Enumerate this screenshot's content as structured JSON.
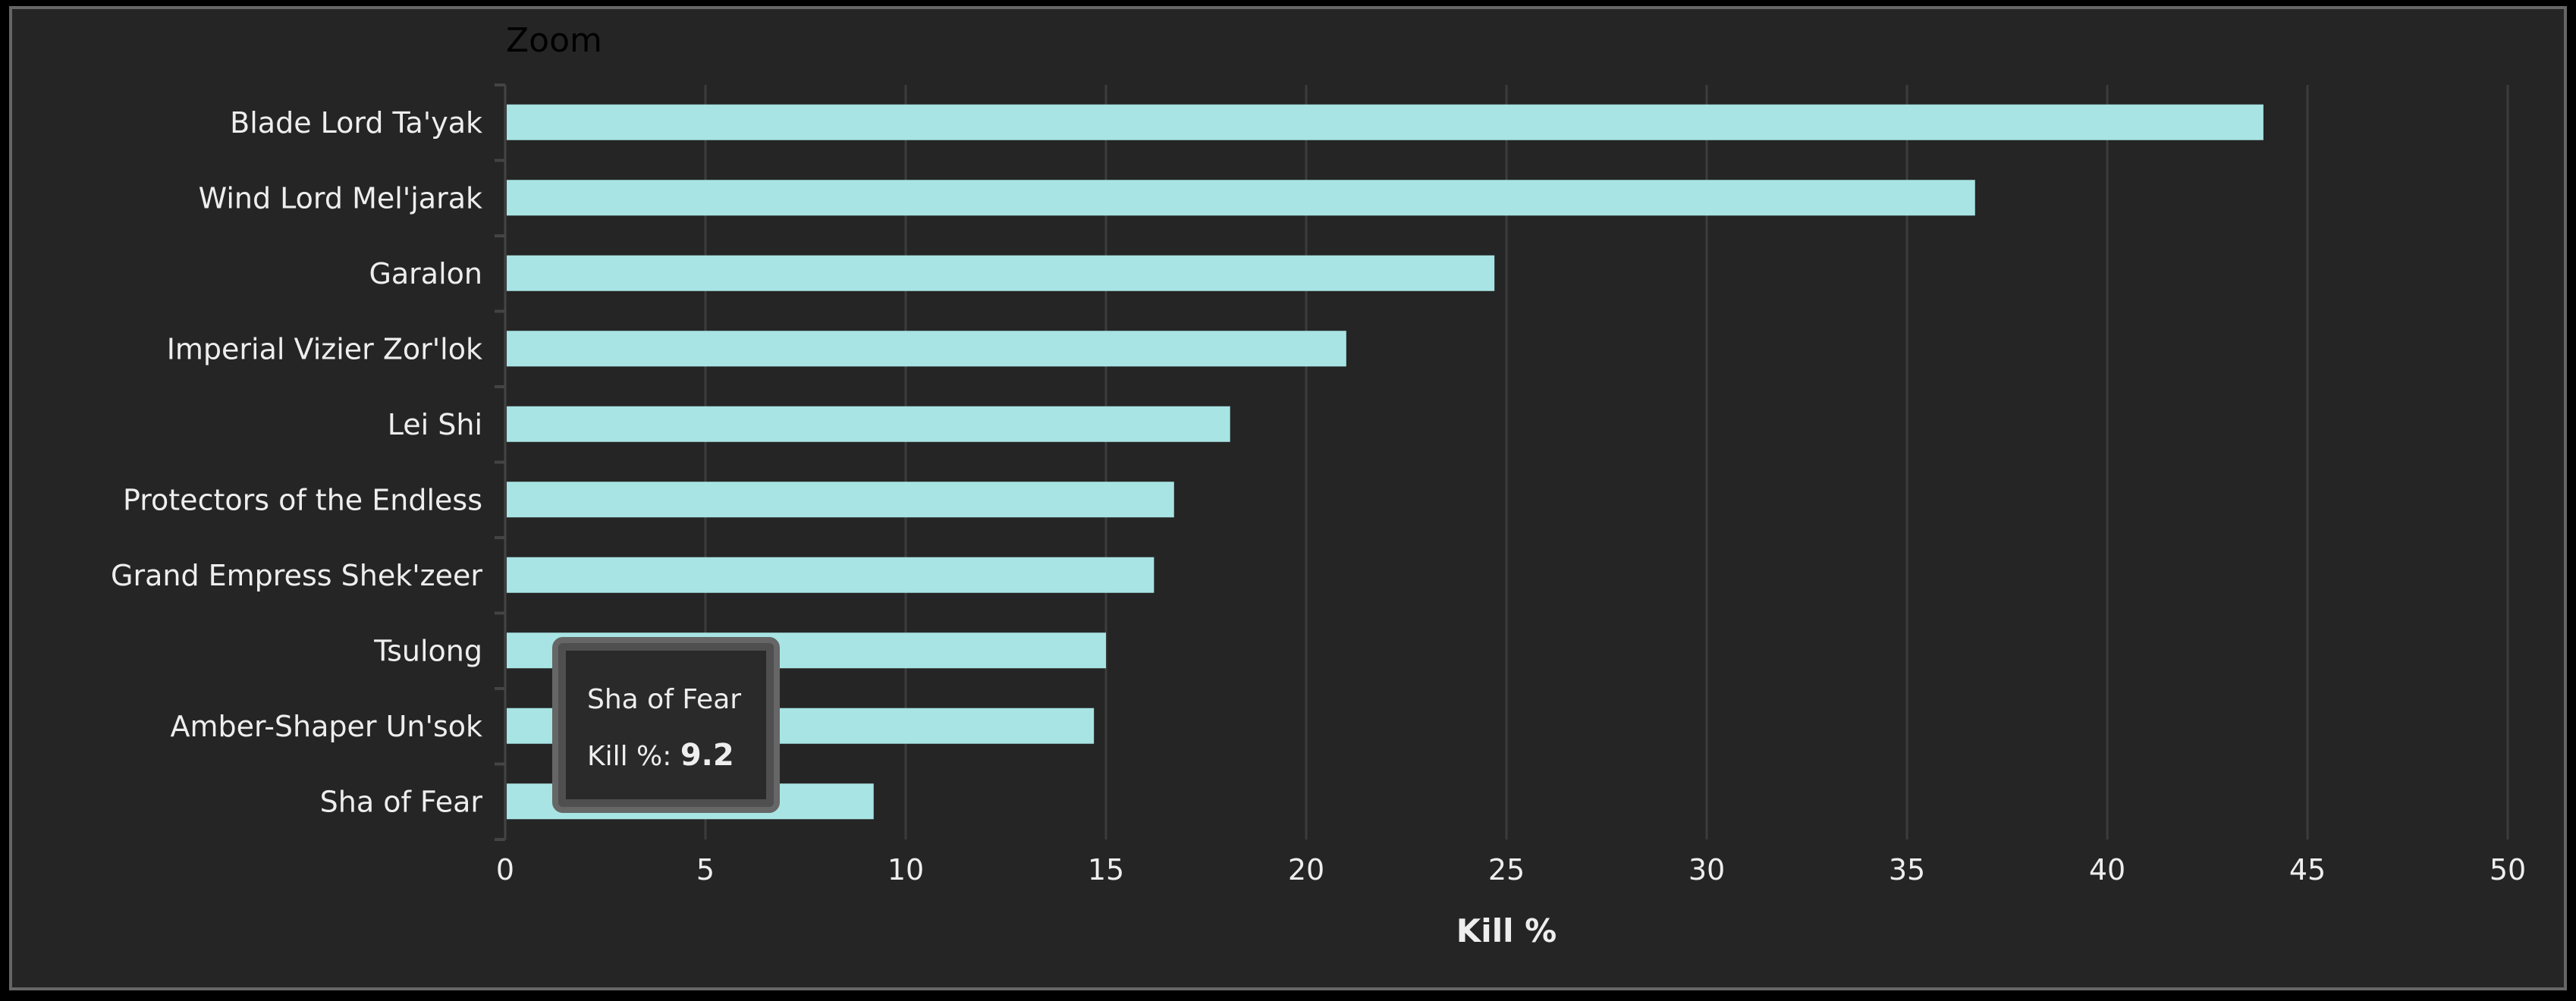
{
  "zoom_label": "Zoom",
  "tooltip": {
    "title": "Sha of Fear",
    "label": "Kill %: ",
    "value": "9.2"
  },
  "colors": {
    "bar": "#a8e4e4",
    "grid": "#3c3c3c",
    "text": "#eeeeee",
    "background": "#252525"
  },
  "chart_data": {
    "type": "bar",
    "orientation": "horizontal",
    "categories": [
      "Blade Lord Ta'yak",
      "Wind Lord Mel'jarak",
      "Garalon",
      "Imperial Vizier Zor'lok",
      "Lei Shi",
      "Protectors of the Endless",
      "Grand Empress Shek'zeer",
      "Tsulong",
      "Amber-Shaper Un'sok",
      "Sha of Fear"
    ],
    "values": [
      43.9,
      36.7,
      24.7,
      21.0,
      18.1,
      16.7,
      16.2,
      15.0,
      14.7,
      9.2
    ],
    "xlabel": "Kill %",
    "ylabel": "",
    "xlim": [
      0,
      50
    ],
    "xticks": [
      "0",
      "5",
      "10",
      "15",
      "20",
      "25",
      "30",
      "35",
      "40",
      "45",
      "50"
    ],
    "grid": true,
    "legend": "none"
  }
}
